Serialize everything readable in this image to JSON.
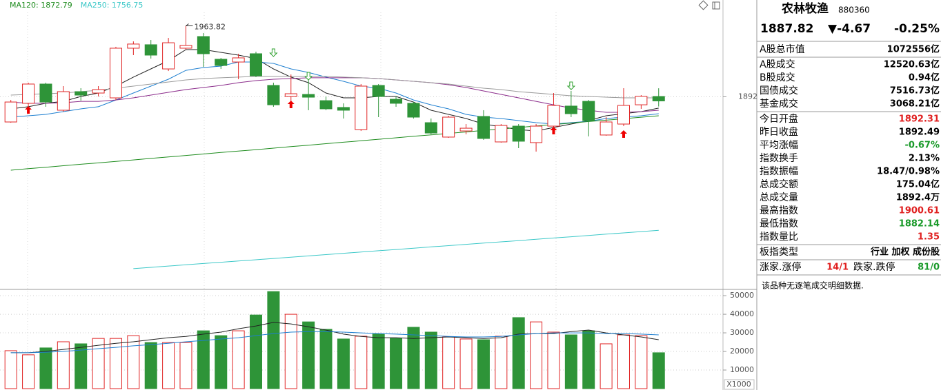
{
  "chart_data": [
    {
      "type": "candlestick",
      "categories": [
        null,
        null,
        null,
        null,
        null,
        null,
        null,
        null,
        null,
        null,
        null,
        null,
        null,
        null,
        null,
        null,
        null,
        null,
        null,
        null,
        null,
        null,
        null,
        null,
        null,
        null,
        null,
        null,
        null,
        null,
        null,
        null,
        null,
        null,
        null,
        null,
        null,
        null
      ],
      "open": [
        1866.5,
        1885.4,
        1904.9,
        1878.4,
        1897.2,
        1895.8,
        1890.9,
        1941.2,
        1944.7,
        1920.2,
        1941.2,
        1953.0,
        1930.0,
        1927.2,
        1935.6,
        1903.5,
        1892.3,
        1894.4,
        1888.1,
        1881.2,
        1858.8,
        1903.5,
        1889.5,
        1885.4,
        1865.8,
        1851.2,
        1857.4,
        1872.1,
        1846.3,
        1862.3,
        1845.6,
        1862.3,
        1882.6,
        1887.4,
        1853.3,
        1864.4,
        1883.9,
        1892.31
      ],
      "close": [
        1886.7,
        1904.9,
        1886.7,
        1897.2,
        1893.7,
        1899.3,
        1941.2,
        1945.4,
        1934.2,
        1946.7,
        1944.0,
        1935.6,
        1923.7,
        1931.4,
        1913.3,
        1883.9,
        1895.1,
        1891.6,
        1879.8,
        1878.4,
        1902.8,
        1892.3,
        1885.4,
        1871.4,
        1855.3,
        1871.4,
        1860.2,
        1849.8,
        1863.0,
        1847.0,
        1862.3,
        1883.3,
        1874.9,
        1867.9,
        1866.5,
        1883.3,
        1892.49,
        1887.82
      ],
      "high": [
        1888.8,
        1906.3,
        1906.3,
        1902.8,
        1900.7,
        1902.8,
        1942.6,
        1948.1,
        1949.5,
        1951.6,
        1963.82,
        1956.5,
        1931.4,
        1935.6,
        1937.7,
        1906.3,
        1914.6,
        1914.6,
        1892.3,
        1885.4,
        1904.9,
        1904.9,
        1892.3,
        1886.7,
        1870.0,
        1872.8,
        1864.4,
        1878.4,
        1864.4,
        1864.4,
        1864.4,
        1895.8,
        1897.9,
        1888.8,
        1871.4,
        1900.7,
        1893.7,
        1900.61
      ],
      "low": [
        1865.8,
        1881.9,
        1881.9,
        1877.0,
        1888.1,
        1892.3,
        1888.8,
        1934.2,
        1930.7,
        1918.1,
        1939.8,
        1922.3,
        1920.2,
        1909.8,
        1911.9,
        1881.9,
        1885.4,
        1878.4,
        1878.4,
        1870.0,
        1857.4,
        1871.4,
        1881.9,
        1870.0,
        1854.0,
        1850.5,
        1854.0,
        1848.4,
        1845.6,
        1840.0,
        1836.5,
        1860.9,
        1871.4,
        1851.9,
        1852.6,
        1862.3,
        1879.8,
        1882.14
      ],
      "up_color": "#e02424",
      "down_color": "#2e9438",
      "series": [
        {
          "color": "#222222",
          "values": [
            1879.8,
            1881.9,
            1885.4,
            1887.4,
            1892.3,
            1895.8,
            1902.8,
            1911.9,
            1920.2,
            1928.6,
            1939.8,
            1939.8,
            1937.0,
            1934.2,
            1930.7,
            1920.2,
            1911.9,
            1906.3,
            1895.8,
            1890.9,
            1890.9,
            1892.3,
            1892.3,
            1886.7,
            1878.4,
            1874.2,
            1870.0,
            1864.4,
            1861.6,
            1858.8,
            1857.4,
            1860.9,
            1864.4,
            1867.9,
            1872.8,
            1874.9,
            1877.0,
            1880.5
          ]
        },
        {
          "color": "#1e7fd0",
          "values": [
            1871.4,
            1872.8,
            1874.2,
            1877.0,
            1879.8,
            1881.9,
            1888.8,
            1895.8,
            1902.8,
            1909.8,
            1918.8,
            1921.6,
            1923.0,
            1927.2,
            1927.2,
            1925.8,
            1920.2,
            1916.7,
            1911.9,
            1907.7,
            1902.8,
            1900.7,
            1895.8,
            1888.8,
            1883.9,
            1879.8,
            1874.2,
            1871.4,
            1870.0,
            1867.9,
            1865.8,
            1864.4,
            1865.8,
            1867.2,
            1870.0,
            1871.4,
            1872.8,
            1874.9
          ]
        },
        {
          "color": "#8b2c8b",
          "values": [
            1886.7,
            1885.4,
            1885.4,
            1886.0,
            1887.4,
            1887.4,
            1888.8,
            1890.9,
            1893.7,
            1896.5,
            1899.3,
            1901.4,
            1903.5,
            1906.3,
            1908.4,
            1909.8,
            1910.5,
            1911.2,
            1911.2,
            1911.2,
            1911.2,
            1910.5,
            1909.1,
            1907.7,
            1906.3,
            1904.2,
            1901.4,
            1897.9,
            1894.4,
            1890.9,
            1887.4,
            1883.9,
            1880.5,
            1878.4,
            1876.3,
            1876.3,
            1877.0,
            1878.4
          ]
        },
        {
          "color": "#9a9a9a",
          "values": [
            1893.7,
            1894.4,
            1895.1,
            1895.8,
            1897.2,
            1898.6,
            1900.7,
            1902.8,
            1904.9,
            1907.0,
            1909.1,
            1910.5,
            1911.2,
            1911.9,
            1912.6,
            1912.6,
            1912.6,
            1912.6,
            1912.6,
            1911.9,
            1911.2,
            1910.5,
            1909.1,
            1907.7,
            1906.3,
            1904.9,
            1902.8,
            1900.7,
            1899.3,
            1897.2,
            1895.8,
            1894.4,
            1893.0,
            1892.3,
            1891.6,
            1890.9,
            1890.9,
            1890.9
          ]
        },
        {
          "name": "MA120",
          "label": "MA120: 1872.79",
          "color": "#1e8c1e",
          "values": [
            1817.7,
            1819.2,
            1820.7,
            1822.2,
            1823.7,
            1825.1,
            1826.6,
            1828.1,
            1829.6,
            1831.1,
            1832.6,
            1834.1,
            1835.6,
            1837.1,
            1838.5,
            1840.0,
            1841.5,
            1843.0,
            1844.5,
            1846.0,
            1847.5,
            1849.0,
            1850.5,
            1852.0,
            1853.4,
            1854.9,
            1856.4,
            1857.9,
            1859.4,
            1860.9,
            1862.4,
            1863.9,
            1865.4,
            1866.9,
            1868.3,
            1869.8,
            1871.3,
            1872.79
          ]
        },
        {
          "name": "MA250",
          "label": "MA250: 1756.75",
          "color": "#3cc8c8",
          "values": [
            null,
            null,
            null,
            null,
            null,
            null,
            null,
            1718.0,
            1719.3,
            1720.6,
            1721.9,
            1723.2,
            1724.5,
            1725.7,
            1727.0,
            1728.3,
            1729.6,
            1730.9,
            1732.2,
            1733.5,
            1734.8,
            1736.1,
            1737.4,
            1738.7,
            1740.0,
            1741.3,
            1742.6,
            1743.9,
            1745.1,
            1746.4,
            1747.7,
            1749.0,
            1750.3,
            1751.6,
            1752.9,
            1754.2,
            1755.5,
            1756.75
          ]
        }
      ],
      "ylim": [
        1690,
        1990
      ],
      "yticks": [
        1892
      ],
      "grid": true
    },
    {
      "type": "bar",
      "values": [
        20400,
        18200,
        21900,
        25200,
        24100,
        27000,
        27000,
        28500,
        24800,
        24800,
        24800,
        31100,
        28500,
        31100,
        39600,
        52200,
        40000,
        35900,
        31900,
        26700,
        28200,
        29300,
        27000,
        33000,
        30400,
        27800,
        26700,
        26300,
        28200,
        38200,
        35900,
        30400,
        28900,
        31100,
        24100,
        28900,
        28500,
        19300
      ],
      "series": [
        {
          "color": "#222222",
          "values": [
            19300,
            19300,
            20000,
            21100,
            22200,
            23300,
            24400,
            25200,
            26300,
            27400,
            28100,
            29300,
            30400,
            32200,
            33700,
            35600,
            34800,
            33300,
            31500,
            29300,
            28100,
            27400,
            27400,
            27000,
            27400,
            27800,
            27400,
            27000,
            27400,
            29300,
            29600,
            29600,
            30700,
            31500,
            30000,
            28900,
            27800,
            26300
          ]
        },
        {
          "color": "#1e7fd0",
          "values": [
            19300,
            19300,
            19600,
            20000,
            20700,
            21500,
            22200,
            23000,
            23700,
            24400,
            25200,
            25900,
            26700,
            27400,
            28500,
            29600,
            30400,
            30700,
            30700,
            30400,
            30000,
            29600,
            29300,
            28900,
            28500,
            28100,
            27800,
            27800,
            28100,
            28900,
            29600,
            30000,
            30000,
            30000,
            29600,
            29600,
            29300,
            28900
          ]
        }
      ],
      "ylim": [
        0,
        53000
      ],
      "yticks": [
        10000,
        20000,
        30000,
        40000,
        50000
      ],
      "axis_unit": "X1000",
      "grid": true
    }
  ],
  "panel": {
    "name": "农林牧渔",
    "code": "880360",
    "price": 1887.82,
    "change": "▼-4.67",
    "change_pct": "-0.25%",
    "color": "#1a9a2a",
    "groups": [
      [
        {
          "label": "A股总市值",
          "value": "1072556亿"
        }
      ],
      [
        {
          "label": "A股成交",
          "value": "12520.63亿"
        },
        {
          "label": "B股成交",
          "value": "0.94亿"
        },
        {
          "label": "国债成交",
          "value": "7516.73亿"
        },
        {
          "label": "基金成交",
          "value": "3068.21亿"
        }
      ],
      [
        {
          "label": "今日开盘",
          "value": 1892.31,
          "color": "#e02020"
        },
        {
          "label": "昨日收盘",
          "value": 1892.49
        },
        {
          "label": "平均涨幅",
          "value": "-0.67%",
          "color": "#1a9a2a"
        },
        {
          "label": "指数换手",
          "value": "2.13%"
        },
        {
          "label": "指数振幅",
          "value": "18.47/0.98%"
        },
        {
          "label": "总成交额",
          "value": "175.04亿"
        },
        {
          "label": "总成交量",
          "value": "1892.4万"
        },
        {
          "label": "最高指数",
          "value": 1900.61,
          "color": "#e02020"
        },
        {
          "label": "最低指数",
          "value": 1882.14,
          "color": "#1a9a2a"
        },
        {
          "label": "指数量比",
          "value": 1.35,
          "color": "#e02020"
        }
      ],
      [
        {
          "label": "板指类型",
          "value": "行业 加权 成份股"
        }
      ]
    ],
    "breadth": {
      "up_label": "涨家.涨停",
      "up": "14/1",
      "up_color": "#e02020",
      "down_label": "跌家.跌停",
      "down": "81/0",
      "down_color": "#1a9a2a"
    },
    "note": "该品种无逐笔成交明细数据."
  }
}
